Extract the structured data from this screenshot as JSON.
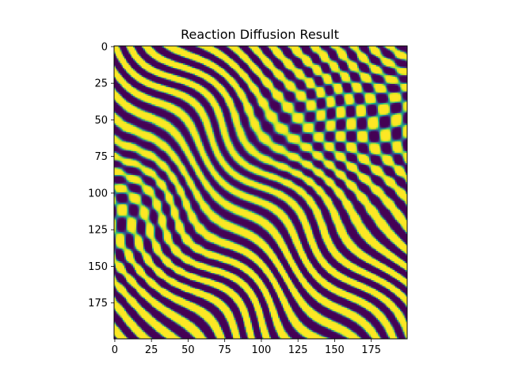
{
  "chart_data": {
    "type": "heatmap",
    "title": "Reaction Diffusion Result",
    "xlabel": "",
    "ylabel": "",
    "grid_size": [
      200,
      200
    ],
    "x_range": [
      -0.5,
      199.5
    ],
    "y_range": [
      -0.5,
      199.5
    ],
    "y_axis_inverted": true,
    "x_ticks": [
      0,
      25,
      50,
      75,
      100,
      125,
      150,
      175
    ],
    "y_ticks": [
      0,
      25,
      50,
      75,
      100,
      125,
      150,
      175
    ],
    "colormap": "viridis",
    "value_range": [
      0,
      1
    ],
    "colors": {
      "high": "#fde725",
      "low": "#440154",
      "mid": "#21918c"
    },
    "pattern_description_visible": false
  }
}
